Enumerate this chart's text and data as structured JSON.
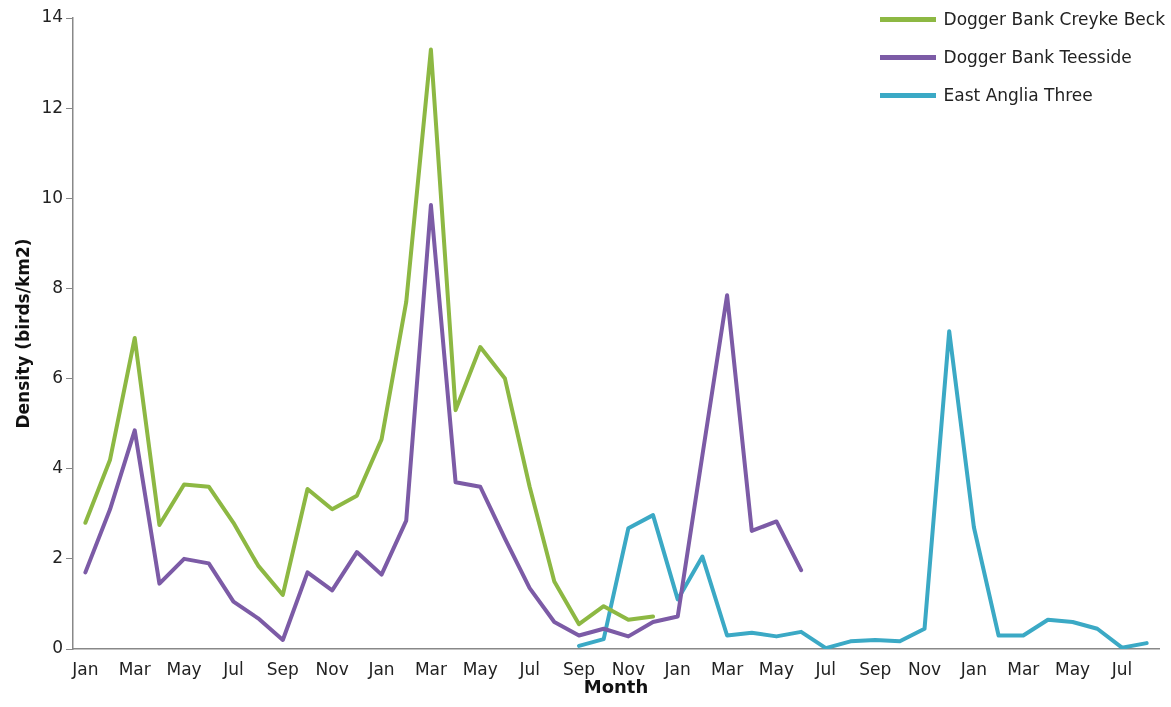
{
  "chart_data": {
    "type": "line",
    "xlabel": "Month",
    "ylabel": "Density (birds/km2)",
    "categories": [
      "Jan",
      null,
      "Mar",
      null,
      "May",
      null,
      "Jul",
      null,
      "Sep",
      null,
      "Nov",
      null,
      "Jan",
      null,
      "Mar",
      null,
      "May",
      null,
      "Jul",
      null,
      "Sep",
      null,
      "Nov",
      null,
      "Jan",
      null,
      "Mar",
      null,
      "May",
      null,
      "Jul",
      null,
      "Sep",
      null,
      "Nov",
      null,
      "Jan",
      null,
      "Mar",
      null,
      "May",
      null,
      "Jul",
      null
    ],
    "series": [
      {
        "name": "Dogger Bank Creyke Beck",
        "color": "#8db843",
        "values": [
          2.8,
          4.2,
          6.9,
          2.75,
          3.65,
          3.6,
          2.8,
          1.85,
          1.2,
          3.55,
          3.1,
          3.4,
          4.65,
          7.7,
          13.3,
          5.3,
          6.7,
          6.0,
          3.6,
          1.5,
          0.55,
          0.95,
          0.65,
          0.72,
          null,
          null,
          null,
          null,
          null,
          null,
          null,
          null,
          null,
          null,
          null,
          null,
          null,
          null,
          null,
          null,
          null,
          null,
          null,
          null
        ]
      },
      {
        "name": "Dogger Bank Teesside",
        "color": "#7c5ba6",
        "values": [
          1.7,
          3.1,
          4.85,
          1.45,
          2.0,
          1.9,
          1.05,
          0.68,
          0.2,
          1.7,
          1.3,
          2.15,
          1.65,
          2.85,
          9.85,
          3.7,
          3.6,
          2.45,
          1.35,
          0.6,
          0.3,
          0.45,
          0.28,
          0.6,
          0.72,
          4.3,
          7.85,
          2.62,
          2.83,
          1.75,
          null,
          null,
          null,
          null,
          null,
          null,
          null,
          null,
          null,
          null,
          null,
          null,
          null,
          null
        ]
      },
      {
        "name": "East Anglia Three",
        "color": "#3ba9c5",
        "values": [
          null,
          null,
          null,
          null,
          null,
          null,
          null,
          null,
          null,
          null,
          null,
          null,
          null,
          null,
          null,
          null,
          null,
          null,
          null,
          null,
          0.07,
          0.22,
          2.68,
          2.97,
          1.1,
          2.05,
          0.3,
          0.36,
          0.28,
          0.38,
          0.02,
          0.17,
          0.2,
          0.17,
          0.45,
          7.05,
          2.7,
          0.3,
          0.3,
          0.65,
          0.6,
          0.45,
          0.03,
          0.13
        ]
      }
    ],
    "ylim": [
      0,
      14
    ],
    "yticks": [
      0,
      2,
      4,
      6,
      8,
      10,
      12,
      14
    ],
    "grid": false,
    "legend": "top right",
    "marker": "none",
    "line_style": "solid"
  }
}
